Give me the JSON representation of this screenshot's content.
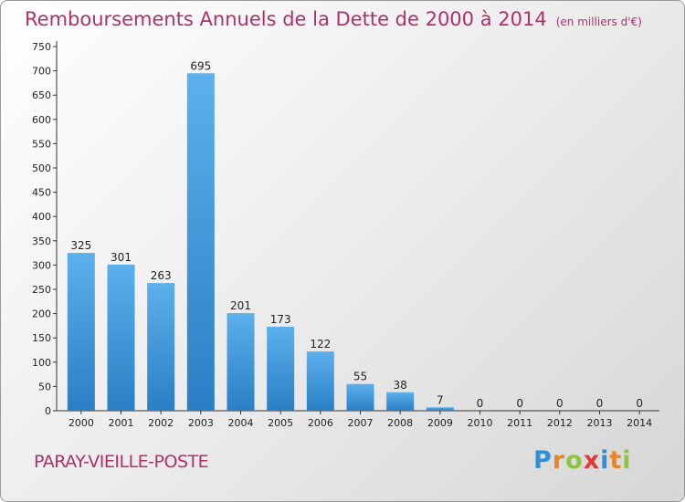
{
  "title": "Remboursements Annuels de la Dette de 2000 à 2014",
  "unit": "(en milliers d'€)",
  "commune": "PARAY-VIEILLE-POSTE",
  "logo": {
    "letters": [
      "P",
      "r",
      "o",
      "x",
      "i",
      "t",
      "i"
    ],
    "colors": [
      "#2d8fd6",
      "#e8842a",
      "#8cc63f",
      "#e23a3a",
      "#2d8fd6",
      "#e8842a",
      "#8cc63f"
    ]
  },
  "colors": {
    "bar_light": "#5cb0ec",
    "bar_dark": "#2a7fc4",
    "title": "#b0306a"
  },
  "chart_data": {
    "type": "bar",
    "title": "Remboursements Annuels de la Dette de 2000 à 2014",
    "categories": [
      "2000",
      "2001",
      "2002",
      "2003",
      "2004",
      "2005",
      "2006",
      "2007",
      "2008",
      "2009",
      "2010",
      "2011",
      "2012",
      "2013",
      "2014"
    ],
    "values": [
      325,
      301,
      263,
      695,
      201,
      173,
      122,
      55,
      38,
      7,
      0,
      0,
      0,
      0,
      0
    ],
    "ylim": [
      0,
      750
    ],
    "yticks": [
      0,
      50,
      100,
      150,
      200,
      250,
      300,
      350,
      400,
      450,
      500,
      550,
      600,
      650,
      700,
      750
    ],
    "grid": false,
    "xlabel": "",
    "ylabel": ""
  }
}
